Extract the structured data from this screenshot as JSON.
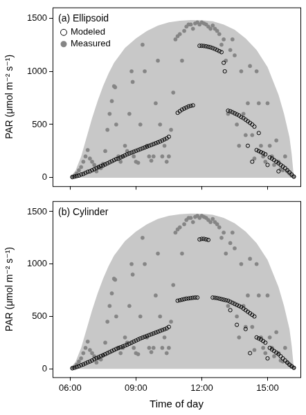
{
  "chart_data": [
    {
      "type": "scatter",
      "title": "(a) Ellipsoid",
      "y_label": "PAR (μmol m⁻² s⁻¹)",
      "xlim": [
        5.2,
        16.5
      ],
      "xticks": [
        {
          "value": 6,
          "label": "06:00"
        },
        {
          "value": 9,
          "label": "09:00"
        },
        {
          "value": 12,
          "label": "12:00"
        },
        {
          "value": 15,
          "label": "15:00"
        }
      ],
      "ylim": [
        -80,
        1600
      ],
      "yticks": [
        0,
        500,
        1000,
        1500
      ],
      "grid": false,
      "legend": "upper left",
      "tick_labels": "y",
      "series": [
        {
          "type": "area",
          "color": "#c8c8c8",
          "x": [
            6.0,
            6.25,
            6.5,
            6.75,
            7.0,
            7.25,
            7.5,
            7.75,
            8.0,
            8.5,
            9.0,
            9.5,
            10.0,
            10.5,
            11.0,
            11.5,
            12.0,
            12.5,
            13.0,
            13.5,
            14.0,
            14.5,
            15.0,
            15.5,
            15.75,
            16.0,
            16.1,
            16.2
          ],
          "values": [
            0,
            70,
            200,
            380,
            560,
            720,
            860,
            980,
            1080,
            1220,
            1310,
            1380,
            1430,
            1460,
            1475,
            1482,
            1480,
            1470,
            1440,
            1390,
            1310,
            1200,
            1040,
            780,
            600,
            380,
            220,
            0
          ]
        },
        {
          "name": "Measured",
          "color": "#858585",
          "marker": "circle",
          "x": [
            6.1,
            6.2,
            6.3,
            6.4,
            6.5,
            6.6,
            6.7,
            6.8,
            6.9,
            7.0,
            7.1,
            7.2,
            7.3,
            7.4,
            7.5,
            7.6,
            7.7,
            7.8,
            7.9,
            8.0,
            8.05,
            8.1,
            8.2,
            8.3,
            8.4,
            8.5,
            8.6,
            8.7,
            8.8,
            8.85,
            8.9,
            9.0,
            9.1,
            9.2,
            9.3,
            9.4,
            9.5,
            9.6,
            9.7,
            9.8,
            9.9,
            10.0,
            10.1,
            10.2,
            10.3,
            10.4,
            10.5,
            10.6,
            10.7,
            10.8,
            10.9,
            11.0,
            11.1,
            11.2,
            11.3,
            11.4,
            11.5,
            11.6,
            11.7,
            11.8,
            11.9,
            12.0,
            12.1,
            12.2,
            12.3,
            12.4,
            12.5,
            12.6,
            12.7,
            12.8,
            12.9,
            13.0,
            13.1,
            13.2,
            13.3,
            13.4,
            13.5,
            13.6,
            13.7,
            13.8,
            13.9,
            14.0,
            14.1,
            14.2,
            14.3,
            14.4,
            14.5,
            14.6,
            14.7,
            14.8,
            14.9,
            15.0,
            15.1,
            15.2,
            15.3,
            15.4,
            15.5,
            15.6,
            15.7,
            15.8,
            15.9,
            16.0,
            16.1,
            16.2
          ],
          "values": [
            10,
            20,
            40,
            70,
            100,
            150,
            200,
            260,
            180,
            150,
            120,
            60,
            100,
            90,
            130,
            250,
            450,
            600,
            720,
            860,
            850,
            500,
            200,
            150,
            200,
            300,
            250,
            600,
            1000,
            900,
            200,
            150,
            140,
            500,
            1250,
            1000,
            300,
            200,
            160,
            200,
            700,
            1100,
            500,
            200,
            300,
            150,
            200,
            450,
            800,
            1300,
            1330,
            1350,
            1100,
            1380,
            1420,
            1440,
            1440,
            1400,
            1450,
            1460,
            1440,
            1460,
            1450,
            1440,
            1420,
            1400,
            1430,
            1400,
            1380,
            1350,
            1250,
            1300,
            1100,
            600,
            1200,
            1300,
            1150,
            500,
            300,
            1000,
            600,
            400,
            700,
            1050,
            400,
            180,
            1000,
            700,
            300,
            200,
            150,
            700,
            300,
            200,
            120,
            350,
            150,
            80,
            70,
            200,
            60,
            40,
            20,
            10
          ]
        },
        {
          "name": "Modeled",
          "color": "#000000",
          "marker": "circle_open",
          "x": [
            6.1,
            6.2,
            6.3,
            6.4,
            6.5,
            6.6,
            6.7,
            6.8,
            6.9,
            7.0,
            7.1,
            7.2,
            7.3,
            7.4,
            7.5,
            7.6,
            7.7,
            7.8,
            7.9,
            8.0,
            8.1,
            8.2,
            8.3,
            8.4,
            8.5,
            8.6,
            8.7,
            8.8,
            8.9,
            9.0,
            9.1,
            9.2,
            9.3,
            9.4,
            9.5,
            9.6,
            9.7,
            9.8,
            9.9,
            10.0,
            10.1,
            10.2,
            10.3,
            10.4,
            10.5,
            10.9,
            11.0,
            11.1,
            11.2,
            11.3,
            11.4,
            11.5,
            11.6,
            11.9,
            12.0,
            12.1,
            12.2,
            12.3,
            12.4,
            12.5,
            12.6,
            12.7,
            12.8,
            12.9,
            13.0,
            13.05,
            13.2,
            13.3,
            13.4,
            13.5,
            13.6,
            13.7,
            13.8,
            13.9,
            14.0,
            14.1,
            14.2,
            14.3,
            14.4,
            14.5,
            14.6,
            14.7,
            14.8,
            14.9,
            15.1,
            15.2,
            15.3,
            15.4,
            15.5,
            15.6,
            15.7,
            15.8,
            15.9,
            16.0,
            16.1,
            16.2,
            14.1,
            14.3,
            14.6,
            15.0,
            15.5
          ],
          "values": [
            5,
            10,
            15,
            20,
            30,
            35,
            45,
            55,
            60,
            70,
            80,
            90,
            100,
            110,
            115,
            125,
            135,
            145,
            155,
            165,
            175,
            180,
            190,
            200,
            210,
            220,
            228,
            236,
            244,
            252,
            260,
            268,
            276,
            284,
            292,
            300,
            308,
            316,
            324,
            332,
            340,
            350,
            360,
            370,
            385,
            610,
            625,
            640,
            650,
            660,
            670,
            675,
            680,
            1240,
            1240,
            1238,
            1235,
            1230,
            1225,
            1218,
            1210,
            1200,
            1190,
            1180,
            1080,
            1000,
            630,
            625,
            615,
            605,
            595,
            585,
            570,
            560,
            545,
            530,
            515,
            500,
            480,
            260,
            250,
            240,
            230,
            220,
            190,
            180,
            165,
            150,
            135,
            120,
            105,
            90,
            70,
            50,
            30,
            10,
            300,
            150,
            420,
            120,
            60
          ]
        }
      ]
    },
    {
      "type": "scatter",
      "title": "(b) Cylinder",
      "x_label": "Time of day",
      "y_label": "PAR (μmol m⁻² s⁻¹)",
      "xlim": [
        5.2,
        16.5
      ],
      "xticks": [
        {
          "value": 6,
          "label": "06:00"
        },
        {
          "value": 9,
          "label": "09:00"
        },
        {
          "value": 12,
          "label": "12:00"
        },
        {
          "value": 15,
          "label": "15:00"
        }
      ],
      "ylim": [
        -80,
        1600
      ],
      "yticks": [
        0,
        500,
        1000,
        1500
      ],
      "grid": false,
      "series": [
        {
          "type": "area",
          "color": "#c8c8c8",
          "x": [
            6.0,
            6.25,
            6.5,
            6.75,
            7.0,
            7.25,
            7.5,
            7.75,
            8.0,
            8.5,
            9.0,
            9.5,
            10.0,
            10.5,
            11.0,
            11.5,
            12.0,
            12.5,
            13.0,
            13.5,
            14.0,
            14.5,
            15.0,
            15.5,
            15.75,
            16.0,
            16.1,
            16.2
          ],
          "values": [
            0,
            70,
            200,
            380,
            560,
            720,
            860,
            980,
            1080,
            1220,
            1310,
            1380,
            1430,
            1460,
            1475,
            1482,
            1480,
            1470,
            1440,
            1390,
            1310,
            1200,
            1040,
            780,
            600,
            380,
            220,
            0
          ]
        },
        {
          "name": "Measured",
          "color": "#858585",
          "marker": "circle",
          "x": [
            6.1,
            6.2,
            6.3,
            6.4,
            6.5,
            6.6,
            6.7,
            6.8,
            6.9,
            7.0,
            7.1,
            7.2,
            7.3,
            7.4,
            7.5,
            7.6,
            7.7,
            7.8,
            7.9,
            8.0,
            8.05,
            8.1,
            8.2,
            8.3,
            8.4,
            8.5,
            8.6,
            8.7,
            8.8,
            8.85,
            8.9,
            9.0,
            9.1,
            9.2,
            9.3,
            9.4,
            9.5,
            9.6,
            9.7,
            9.8,
            9.9,
            10.0,
            10.1,
            10.2,
            10.3,
            10.4,
            10.5,
            10.6,
            10.7,
            10.8,
            10.9,
            11.0,
            11.1,
            11.2,
            11.3,
            11.4,
            11.5,
            11.6,
            11.7,
            11.8,
            11.9,
            12.0,
            12.1,
            12.2,
            12.3,
            12.4,
            12.5,
            12.6,
            12.7,
            12.8,
            12.9,
            13.0,
            13.1,
            13.2,
            13.3,
            13.4,
            13.5,
            13.6,
            13.7,
            13.8,
            13.9,
            14.0,
            14.1,
            14.2,
            14.3,
            14.4,
            14.5,
            14.6,
            14.7,
            14.8,
            14.9,
            15.0,
            15.1,
            15.2,
            15.3,
            15.4,
            15.5,
            15.6,
            15.7,
            15.8,
            15.9,
            16.0,
            16.1,
            16.2
          ],
          "values": [
            10,
            20,
            40,
            70,
            100,
            150,
            200,
            260,
            180,
            150,
            120,
            60,
            100,
            90,
            130,
            250,
            450,
            600,
            720,
            860,
            850,
            500,
            200,
            150,
            200,
            300,
            250,
            600,
            1000,
            900,
            200,
            150,
            140,
            500,
            1250,
            1000,
            300,
            200,
            160,
            200,
            700,
            1100,
            500,
            200,
            300,
            150,
            200,
            450,
            800,
            1300,
            1330,
            1350,
            1100,
            1380,
            1420,
            1440,
            1440,
            1400,
            1450,
            1460,
            1440,
            1460,
            1450,
            1440,
            1420,
            1400,
            1430,
            1400,
            1380,
            1350,
            1250,
            1300,
            1100,
            600,
            1200,
            1300,
            1150,
            500,
            300,
            1000,
            600,
            400,
            700,
            1050,
            400,
            180,
            1000,
            700,
            300,
            200,
            150,
            700,
            300,
            200,
            120,
            350,
            150,
            80,
            70,
            200,
            60,
            40,
            20,
            10
          ]
        },
        {
          "name": "Modeled",
          "color": "#000000",
          "marker": "circle_open",
          "x": [
            6.1,
            6.2,
            6.3,
            6.4,
            6.5,
            6.6,
            6.7,
            6.8,
            6.9,
            7.0,
            7.1,
            7.2,
            7.3,
            7.4,
            7.5,
            7.6,
            7.7,
            7.8,
            7.9,
            8.0,
            8.1,
            8.2,
            8.3,
            8.4,
            8.5,
            8.6,
            8.7,
            8.8,
            8.9,
            9.0,
            9.1,
            9.2,
            9.3,
            9.4,
            9.5,
            9.6,
            9.7,
            9.8,
            9.9,
            10.0,
            10.1,
            10.2,
            10.3,
            10.4,
            10.5,
            10.9,
            11.0,
            11.1,
            11.2,
            11.3,
            11.4,
            11.5,
            11.6,
            11.7,
            11.8,
            11.9,
            12.0,
            12.1,
            12.2,
            12.3,
            12.5,
            12.6,
            12.7,
            12.8,
            12.9,
            13.0,
            13.1,
            13.2,
            13.3,
            13.4,
            13.5,
            13.6,
            13.7,
            13.8,
            13.9,
            14.0,
            14.1,
            14.2,
            14.3,
            14.4,
            14.5,
            14.6,
            14.7,
            14.8,
            14.9,
            15.1,
            15.2,
            15.3,
            15.4,
            15.5,
            15.6,
            15.7,
            15.8,
            15.9,
            16.0,
            16.1,
            16.2,
            13.3,
            13.6,
            14.0,
            14.2,
            15.0
          ],
          "values": [
            5,
            10,
            18,
            25,
            35,
            42,
            52,
            62,
            70,
            80,
            92,
            102,
            112,
            122,
            130,
            140,
            150,
            160,
            170,
            180,
            190,
            198,
            206,
            214,
            222,
            230,
            240,
            250,
            260,
            270,
            280,
            290,
            298,
            306,
            314,
            322,
            330,
            338,
            346,
            354,
            362,
            370,
            378,
            386,
            400,
            650,
            655,
            660,
            665,
            670,
            672,
            675,
            678,
            680,
            680,
            1235,
            1240,
            1240,
            1235,
            1230,
            680,
            678,
            675,
            670,
            665,
            660,
            655,
            650,
            640,
            630,
            620,
            610,
            600,
            590,
            575,
            560,
            545,
            530,
            515,
            500,
            300,
            290,
            280,
            265,
            250,
            200,
            185,
            170,
            155,
            140,
            120,
            100,
            80,
            60,
            40,
            25,
            10,
            560,
            420,
            380,
            150,
            100
          ]
        }
      ]
    }
  ]
}
